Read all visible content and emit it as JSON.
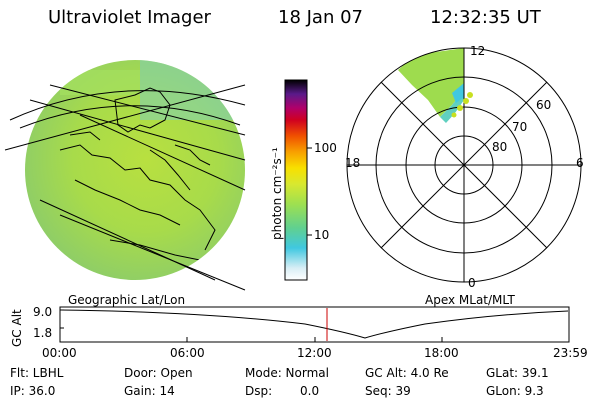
{
  "header": {
    "instrument": "Ultraviolet Imager",
    "date": "18 Jan 07",
    "time": "12:32:35 UT"
  },
  "colorbar": {
    "unit_label": "photon cm⁻²s⁻¹",
    "tick_100": "100",
    "tick_10": "10",
    "scale": "log"
  },
  "polar_plot": {
    "mlt_labels": {
      "top": "12",
      "left": "18",
      "right": "6",
      "bottom": "0"
    },
    "mlat_labels": [
      "60",
      "70",
      "80"
    ]
  },
  "projection_labels": {
    "left": "Geographic Lat/Lon",
    "right": "Apex MLat/MLT"
  },
  "altitude_strip": {
    "axis_label": "GC Alt",
    "y_top": "9.0",
    "y_bottom": "1.8",
    "time_ticks": [
      "00:00",
      "06:00",
      "12:00",
      "18:00",
      "23:59"
    ],
    "current_time_marker": "12:32:35",
    "colors": {
      "marker": "#cc0000"
    }
  },
  "status": {
    "flt": "Flt: LBHL",
    "ip": "IP: 36.0",
    "door": "Door: Open",
    "gain": "Gain: 14",
    "mode": "Mode: Normal",
    "dsp_label": "Dsp:",
    "dsp_value": "0.0",
    "gc_alt": "GC Alt: 4.0 Re",
    "seq": "Seq: 39",
    "glat": "GLat: 39.1",
    "glon": "GLon: 9.3"
  }
}
